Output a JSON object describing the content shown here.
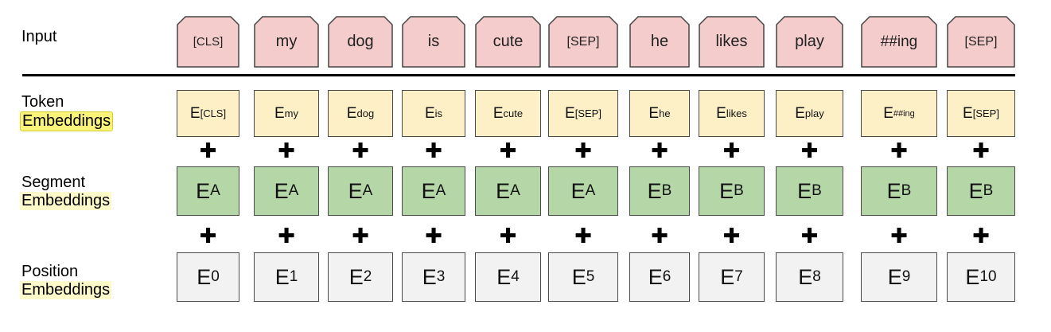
{
  "rows": {
    "input": {
      "line1": "Input"
    },
    "token": {
      "line1": "Token",
      "line2": "Embeddings"
    },
    "segment": {
      "line1": "Segment",
      "line2": "Embeddings"
    },
    "position": {
      "line1": "Position",
      "line2": "Embeddings"
    }
  },
  "plus_symbol": "✚",
  "tokens": [
    {
      "input": "[CLS]",
      "tok_sub": "[CLS]",
      "seg_sub": "A",
      "pos_sub": "0"
    },
    {
      "input": "my",
      "tok_sub": "my",
      "seg_sub": "A",
      "pos_sub": "1"
    },
    {
      "input": "dog",
      "tok_sub": "dog",
      "seg_sub": "A",
      "pos_sub": "2"
    },
    {
      "input": "is",
      "tok_sub": "is",
      "seg_sub": "A",
      "pos_sub": "3"
    },
    {
      "input": "cute",
      "tok_sub": "cute",
      "seg_sub": "A",
      "pos_sub": "4"
    },
    {
      "input": "[SEP]",
      "tok_sub": "[SEP]",
      "seg_sub": "A",
      "pos_sub": "5"
    },
    {
      "input": "he",
      "tok_sub": "he",
      "seg_sub": "B",
      "pos_sub": "6"
    },
    {
      "input": "likes",
      "tok_sub": "likes",
      "seg_sub": "B",
      "pos_sub": "7"
    },
    {
      "input": "play",
      "tok_sub": "play",
      "seg_sub": "B",
      "pos_sub": "8"
    },
    {
      "input": "##ing",
      "tok_sub": "##ing",
      "seg_sub": "B",
      "pos_sub": "9"
    },
    {
      "input": "[SEP]",
      "tok_sub": "[SEP]",
      "seg_sub": "B",
      "pos_sub": "10"
    }
  ],
  "embedding_letter": "E",
  "colors": {
    "input_fill": "#f4cccc",
    "token_fill": "#fdf0c6",
    "segment_fill": "#b5d7a8",
    "position_fill": "#f2f2f2",
    "label_highlight_strong": "#fbf47a",
    "label_highlight_soft": "#fdf9c9"
  }
}
